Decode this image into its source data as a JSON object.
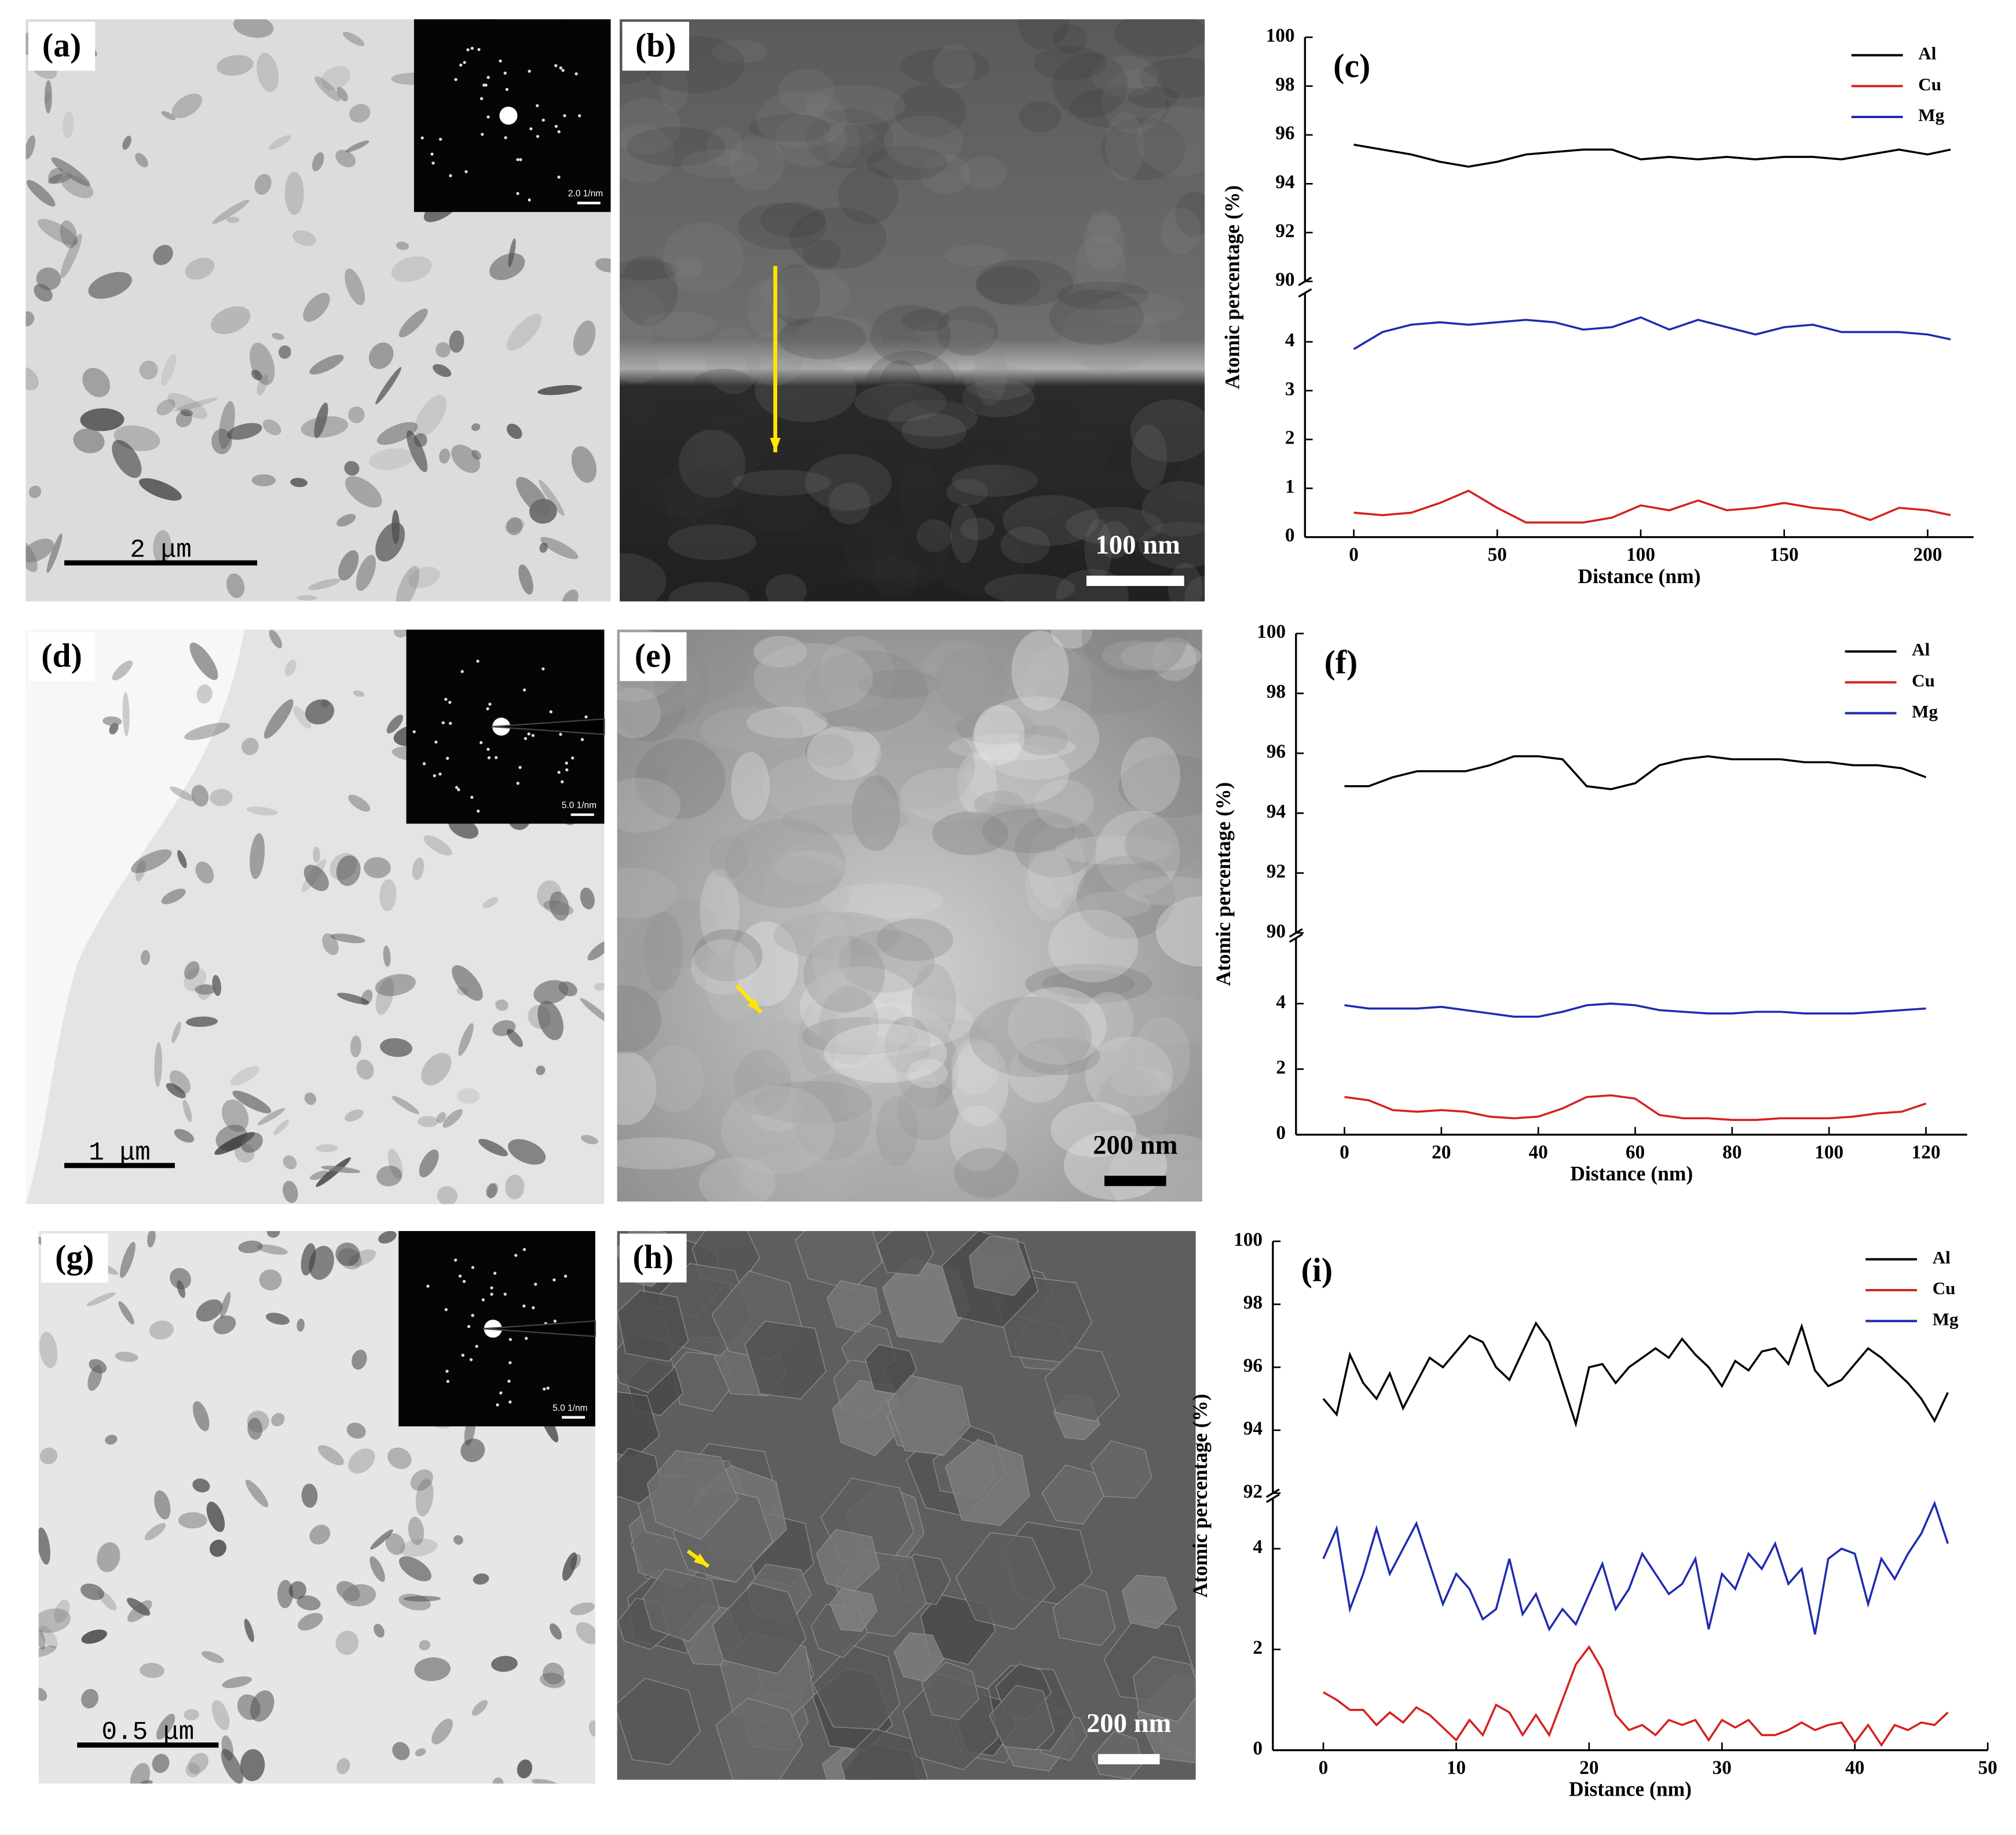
{
  "panels": [
    {
      "label": "(a)",
      "scale": "2 μm",
      "inset": "2.0 1/nm"
    },
    {
      "label": "(b)",
      "scale": "100 nm"
    },
    {
      "label": "(d)",
      "scale": "1 μm",
      "inset": "5.0 1/nm"
    },
    {
      "label": "(e)",
      "scale": "200 nm"
    },
    {
      "label": "(g)",
      "scale": "0.5 μm",
      "inset": "5.0 1/nm"
    },
    {
      "label": "(h)",
      "scale": "200 nm"
    }
  ],
  "chart_data": [
    {
      "type": "line",
      "annotation": "(c)",
      "xlabel": "Distance (nm)",
      "ylabel": "Atomic percentage (%)",
      "x": [
        0,
        10,
        20,
        30,
        40,
        50,
        60,
        70,
        80,
        90,
        100,
        110,
        120,
        130,
        140,
        150,
        160,
        170,
        180,
        190,
        200,
        208
      ],
      "series": [
        {
          "name": "Al",
          "color": "#000000",
          "values": [
            95.6,
            95.4,
            95.2,
            94.9,
            94.7,
            94.9,
            95.2,
            95.3,
            95.4,
            95.4,
            95.0,
            95.1,
            95.0,
            95.1,
            95.0,
            95.1,
            95.1,
            95.0,
            95.2,
            95.4,
            95.2,
            95.4
          ]
        },
        {
          "name": "Cu",
          "color": "#d62020",
          "values": [
            0.5,
            0.45,
            0.5,
            0.7,
            0.95,
            0.6,
            0.3,
            0.3,
            0.3,
            0.4,
            0.65,
            0.55,
            0.75,
            0.55,
            0.6,
            0.7,
            0.6,
            0.55,
            0.35,
            0.6,
            0.55,
            0.45
          ]
        },
        {
          "name": "Mg",
          "color": "#1f2bb0",
          "values": [
            3.85,
            4.2,
            4.35,
            4.4,
            4.35,
            4.4,
            4.45,
            4.4,
            4.25,
            4.3,
            4.5,
            4.25,
            4.45,
            4.3,
            4.15,
            4.3,
            4.35,
            4.2,
            4.2,
            4.2,
            4.15,
            4.05
          ]
        }
      ],
      "xlim": [
        -17,
        216
      ],
      "xticks": [
        0,
        50,
        100,
        150,
        200
      ],
      "ylim": [
        0,
        100
      ],
      "ybreak": [
        5,
        90
      ],
      "yticks": [
        0,
        1,
        2,
        3,
        4,
        90,
        92,
        94,
        96,
        98,
        100
      ],
      "legend": "upper right"
    },
    {
      "type": "line",
      "annotation": "(f)",
      "xlabel": "Distance (nm)",
      "ylabel": "Atomic percentage (%)",
      "x": [
        0,
        5,
        10,
        15,
        20,
        25,
        30,
        35,
        40,
        45,
        50,
        55,
        60,
        65,
        70,
        75,
        80,
        85,
        90,
        95,
        100,
        105,
        110,
        115,
        120
      ],
      "series": [
        {
          "name": "Al",
          "color": "#000000",
          "values": [
            94.9,
            94.9,
            95.2,
            95.4,
            95.4,
            95.4,
            95.6,
            95.9,
            95.9,
            95.8,
            94.9,
            94.8,
            95.0,
            95.6,
            95.8,
            95.9,
            95.8,
            95.8,
            95.8,
            95.7,
            95.7,
            95.6,
            95.6,
            95.5,
            95.2
          ]
        },
        {
          "name": "Cu",
          "color": "#d62020",
          "values": [
            1.15,
            1.05,
            0.75,
            0.7,
            0.75,
            0.7,
            0.55,
            0.5,
            0.55,
            0.8,
            1.15,
            1.2,
            1.1,
            0.6,
            0.5,
            0.5,
            0.45,
            0.45,
            0.5,
            0.5,
            0.5,
            0.55,
            0.65,
            0.7,
            0.95
          ]
        },
        {
          "name": "Mg",
          "color": "#1f2bb0",
          "values": [
            3.95,
            3.85,
            3.85,
            3.85,
            3.9,
            3.8,
            3.7,
            3.6,
            3.6,
            3.75,
            3.95,
            4.0,
            3.95,
            3.8,
            3.75,
            3.7,
            3.7,
            3.75,
            3.75,
            3.7,
            3.7,
            3.7,
            3.75,
            3.8,
            3.85
          ]
        }
      ],
      "xlim": [
        -10,
        128.5
      ],
      "xticks": [
        0,
        20,
        40,
        60,
        80,
        100,
        120
      ],
      "ylim": [
        0,
        100
      ],
      "ybreak": [
        6,
        90
      ],
      "yticks": [
        0,
        2,
        4,
        90,
        92,
        94,
        96,
        98,
        100
      ],
      "legend": "upper right"
    },
    {
      "type": "line",
      "annotation": "(i)",
      "xlabel": "Distance (nm)",
      "ylabel": "Atomic percentage (%)",
      "x": [
        0,
        1,
        2,
        3,
        4,
        5,
        6,
        7,
        8,
        9,
        10,
        11,
        12,
        13,
        14,
        15,
        16,
        17,
        18,
        19,
        20,
        21,
        22,
        23,
        24,
        25,
        26,
        27,
        28,
        29,
        30,
        31,
        32,
        33,
        34,
        35,
        36,
        37,
        38,
        39,
        40,
        41,
        42,
        43,
        44,
        45,
        46,
        47
      ],
      "series": [
        {
          "name": "Al",
          "color": "#000000",
          "values": [
            95.0,
            94.5,
            96.4,
            95.5,
            95.0,
            95.8,
            94.7,
            95.5,
            96.3,
            96.0,
            96.5,
            97.0,
            96.8,
            96.0,
            95.6,
            96.5,
            97.4,
            96.8,
            95.5,
            94.2,
            96.0,
            96.1,
            95.5,
            96.0,
            96.3,
            96.6,
            96.3,
            96.9,
            96.4,
            96.0,
            95.4,
            96.2,
            95.9,
            96.5,
            96.6,
            96.1,
            97.3,
            95.9,
            95.4,
            95.6,
            96.1,
            96.6,
            96.3,
            95.9,
            95.5,
            95.0,
            94.3,
            95.2
          ]
        },
        {
          "name": "Cu",
          "color": "#d62020",
          "values": [
            1.15,
            1.0,
            0.8,
            0.8,
            0.5,
            0.75,
            0.55,
            0.85,
            0.7,
            0.45,
            0.2,
            0.6,
            0.3,
            0.9,
            0.75,
            0.3,
            0.7,
            0.3,
            1.0,
            1.7,
            2.05,
            1.6,
            0.7,
            0.4,
            0.5,
            0.3,
            0.6,
            0.5,
            0.6,
            0.2,
            0.6,
            0.45,
            0.6,
            0.3,
            0.3,
            0.4,
            0.55,
            0.4,
            0.5,
            0.55,
            0.15,
            0.5,
            0.1,
            0.5,
            0.4,
            0.55,
            0.5,
            0.75
          ]
        },
        {
          "name": "Mg",
          "color": "#1f2bb0",
          "values": [
            3.8,
            4.4,
            2.8,
            3.5,
            4.4,
            3.5,
            4.0,
            4.5,
            3.7,
            2.9,
            3.5,
            3.2,
            2.6,
            2.8,
            3.8,
            2.7,
            3.1,
            2.4,
            2.8,
            2.5,
            3.1,
            3.7,
            2.8,
            3.2,
            3.9,
            3.5,
            3.1,
            3.3,
            3.8,
            2.4,
            3.5,
            3.2,
            3.9,
            3.6,
            4.1,
            3.3,
            3.6,
            2.3,
            3.8,
            4.0,
            3.9,
            2.9,
            3.8,
            3.4,
            3.9,
            4.3,
            4.9,
            4.1
          ]
        }
      ],
      "xlim": [
        -3.8,
        50
      ],
      "xticks": [
        0,
        10,
        20,
        30,
        40,
        50
      ],
      "ylim": [
        0,
        100
      ],
      "ybreak": [
        5,
        92
      ],
      "yticks": [
        0,
        2,
        4,
        92,
        94,
        96,
        98,
        100
      ],
      "legend": "upper right"
    }
  ]
}
